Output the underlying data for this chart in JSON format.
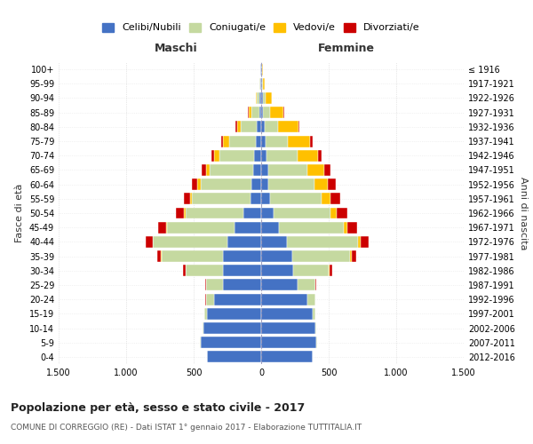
{
  "age_groups": [
    "0-4",
    "5-9",
    "10-14",
    "15-19",
    "20-24",
    "25-29",
    "30-34",
    "35-39",
    "40-44",
    "45-49",
    "50-54",
    "55-59",
    "60-64",
    "65-69",
    "70-74",
    "75-79",
    "80-84",
    "85-89",
    "90-94",
    "95-99",
    "100+"
  ],
  "birth_years": [
    "2012-2016",
    "2007-2011",
    "2002-2006",
    "1997-2001",
    "1992-1996",
    "1987-1991",
    "1982-1986",
    "1977-1981",
    "1972-1976",
    "1967-1971",
    "1962-1966",
    "1957-1961",
    "1952-1956",
    "1947-1951",
    "1942-1946",
    "1937-1941",
    "1932-1936",
    "1927-1931",
    "1922-1926",
    "1917-1921",
    "≤ 1916"
  ],
  "males": {
    "celibe": [
      400,
      450,
      430,
      400,
      350,
      280,
      280,
      280,
      250,
      200,
      130,
      80,
      70,
      60,
      50,
      40,
      30,
      15,
      10,
      5,
      5
    ],
    "coniugato": [
      0,
      2,
      5,
      20,
      60,
      130,
      280,
      460,
      550,
      500,
      430,
      430,
      380,
      320,
      260,
      200,
      120,
      60,
      20,
      5,
      2
    ],
    "vedovo": [
      0,
      0,
      0,
      0,
      0,
      1,
      1,
      2,
      3,
      5,
      10,
      15,
      25,
      30,
      40,
      40,
      30,
      20,
      10,
      3,
      1
    ],
    "divorziato": [
      0,
      0,
      0,
      0,
      2,
      5,
      15,
      30,
      50,
      55,
      60,
      50,
      35,
      30,
      20,
      15,
      10,
      5,
      2,
      0,
      0
    ]
  },
  "females": {
    "nubile": [
      380,
      410,
      400,
      380,
      340,
      270,
      240,
      230,
      190,
      130,
      90,
      65,
      55,
      50,
      40,
      30,
      25,
      15,
      10,
      5,
      5
    ],
    "coniugata": [
      0,
      2,
      5,
      20,
      60,
      130,
      260,
      430,
      530,
      480,
      420,
      380,
      340,
      290,
      230,
      170,
      100,
      50,
      20,
      5,
      2
    ],
    "vedova": [
      0,
      0,
      0,
      0,
      1,
      2,
      4,
      8,
      15,
      30,
      50,
      70,
      100,
      130,
      150,
      160,
      150,
      100,
      50,
      15,
      5
    ],
    "divorziata": [
      0,
      0,
      0,
      0,
      2,
      8,
      20,
      35,
      60,
      70,
      80,
      70,
      60,
      40,
      30,
      20,
      10,
      5,
      2,
      0,
      0
    ]
  },
  "color_celibe": "#4472C4",
  "color_coniugato": "#c5d9a0",
  "color_vedovo": "#ffc000",
  "color_divorziato": "#cc0000",
  "title": "Popolazione per età, sesso e stato civile - 2017",
  "subtitle": "COMUNE DI CORREGGIO (RE) - Dati ISTAT 1° gennaio 2017 - Elaborazione TUTTITALIA.IT",
  "xlabel_left": "Maschi",
  "xlabel_right": "Femmine",
  "ylabel_left": "Fasce di età",
  "ylabel_right": "Anni di nascita",
  "xlim": 1500,
  "legend_labels": [
    "Celibi/Nubili",
    "Coniugati/e",
    "Vedovi/e",
    "Divorziati/e"
  ],
  "bg_color": "#ffffff",
  "grid_color": "#cccccc"
}
